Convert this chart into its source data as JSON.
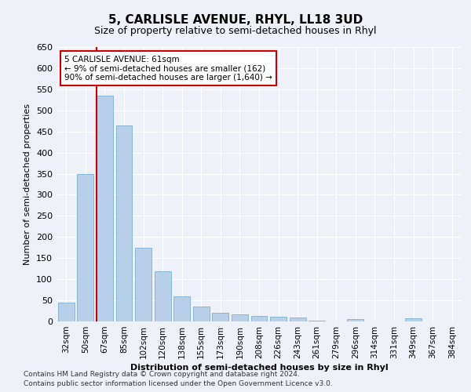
{
  "title": "5, CARLISLE AVENUE, RHYL, LL18 3UD",
  "subtitle": "Size of property relative to semi-detached houses in Rhyl",
  "xlabel": "Distribution of semi-detached houses by size in Rhyl",
  "ylabel": "Number of semi-detached properties",
  "categories": [
    "32sqm",
    "50sqm",
    "67sqm",
    "85sqm",
    "102sqm",
    "120sqm",
    "138sqm",
    "155sqm",
    "173sqm",
    "190sqm",
    "208sqm",
    "226sqm",
    "243sqm",
    "261sqm",
    "279sqm",
    "296sqm",
    "314sqm",
    "331sqm",
    "349sqm",
    "367sqm",
    "384sqm"
  ],
  "values": [
    45,
    350,
    535,
    465,
    175,
    118,
    60,
    36,
    20,
    17,
    13,
    11,
    9,
    2,
    0,
    6,
    0,
    0,
    7,
    0,
    0
  ],
  "bar_color": "#b8d0ea",
  "bar_edge_color": "#7aafd4",
  "property_line_index": 2,
  "property_line_color": "#cc0000",
  "annotation_text": "5 CARLISLE AVENUE: 61sqm\n← 9% of semi-detached houses are smaller (162)\n90% of semi-detached houses are larger (1,640) →",
  "annotation_box_color": "#cc0000",
  "ylim": [
    0,
    650
  ],
  "yticks": [
    0,
    50,
    100,
    150,
    200,
    250,
    300,
    350,
    400,
    450,
    500,
    550,
    600,
    650
  ],
  "footer_line1": "Contains HM Land Registry data © Crown copyright and database right 2024.",
  "footer_line2": "Contains public sector information licensed under the Open Government Licence v3.0.",
  "background_color": "#eef2f8",
  "plot_bg_color": "#eef2f8",
  "title_fontsize": 11,
  "subtitle_fontsize": 9,
  "xlabel_fontsize": 8,
  "ylabel_fontsize": 8,
  "tick_fontsize": 7.5,
  "annotation_fontsize": 7.5,
  "footer_fontsize": 6.5
}
